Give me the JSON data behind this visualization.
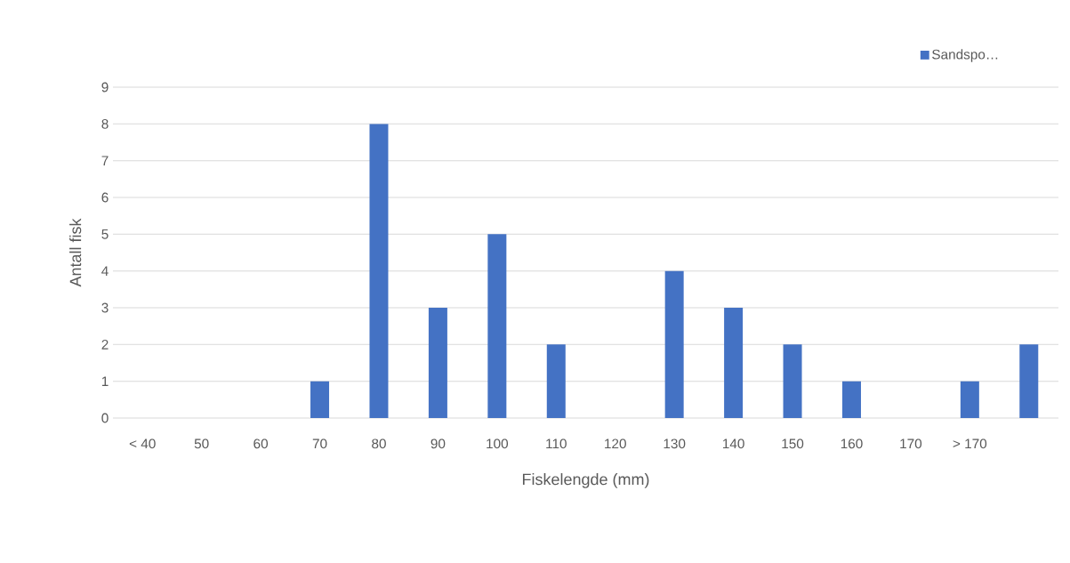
{
  "chart_data": {
    "type": "bar",
    "xlabel": "Fiskelengde (mm)",
    "ylabel": "Antall fisk",
    "categories": [
      "< 40",
      "50",
      "60",
      "70",
      "80",
      "90",
      "100",
      "110",
      "120",
      "130",
      "140",
      "150",
      "160",
      "170",
      "> 170",
      null
    ],
    "series": [
      {
        "name": "Sandspo…",
        "color": "#4472c4",
        "values": [
          0,
          0,
          0,
          1,
          8,
          3,
          5,
          2,
          0,
          4,
          3,
          2,
          1,
          0,
          1,
          2
        ]
      }
    ],
    "ylim": [
      0,
      9
    ],
    "yticks": [
      0,
      1,
      2,
      3,
      4,
      5,
      6,
      7,
      8,
      9
    ],
    "grid": "y",
    "legend": "top right"
  }
}
